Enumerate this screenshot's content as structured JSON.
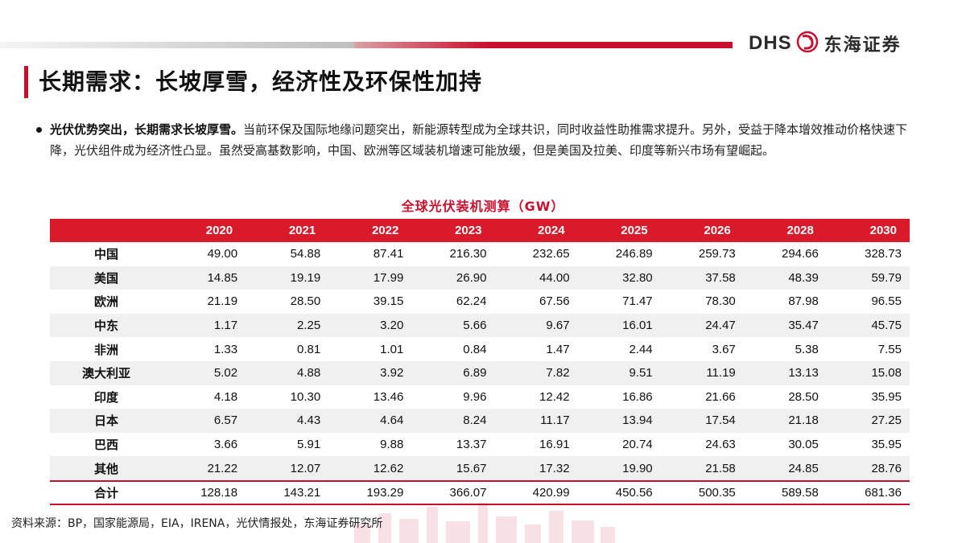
{
  "header": {
    "logo_latin": "DHS",
    "logo_cn": "东海证券"
  },
  "page_title": "长期需求：长坡厚雪，经济性及环保性加持",
  "bullet": {
    "bold": "光伏优势突出，长期需求长坡厚雪。",
    "text": "当前环保及国际地缘问题突出，新能源转型成为全球共识，同时收益性助推需求提升。另外，受益于降本增效推动价格快速下降，光伏组件成为经济性凸显。虽然受高基数影响，中国、欧洲等区域装机增速可能放缓，但是美国及拉美、印度等新兴市场有望崛起。"
  },
  "table": {
    "title": "全球光伏装机测算（GW）",
    "columns": [
      "",
      "2020",
      "2021",
      "2022",
      "2023",
      "2024",
      "2025",
      "2026",
      "2028",
      "2030"
    ],
    "rows": [
      [
        "中国",
        "49.00",
        "54.88",
        "87.41",
        "216.30",
        "232.65",
        "246.89",
        "259.73",
        "294.66",
        "328.73"
      ],
      [
        "美国",
        "14.85",
        "19.19",
        "17.99",
        "26.90",
        "44.00",
        "32.80",
        "37.58",
        "48.39",
        "59.79"
      ],
      [
        "欧洲",
        "21.19",
        "28.50",
        "39.15",
        "62.24",
        "67.56",
        "71.47",
        "78.30",
        "87.98",
        "96.55"
      ],
      [
        "中东",
        "1.17",
        "2.25",
        "3.20",
        "5.66",
        "9.67",
        "16.01",
        "24.47",
        "35.47",
        "45.75"
      ],
      [
        "非洲",
        "1.33",
        "0.81",
        "1.01",
        "0.84",
        "1.47",
        "2.44",
        "3.67",
        "5.38",
        "7.55"
      ],
      [
        "澳大利亚",
        "5.02",
        "4.88",
        "3.92",
        "6.89",
        "7.82",
        "9.51",
        "11.19",
        "13.13",
        "15.08"
      ],
      [
        "印度",
        "4.18",
        "10.30",
        "13.46",
        "9.96",
        "12.42",
        "16.86",
        "21.66",
        "28.50",
        "35.95"
      ],
      [
        "日本",
        "6.57",
        "4.43",
        "4.64",
        "8.24",
        "11.17",
        "13.94",
        "17.54",
        "21.18",
        "27.25"
      ],
      [
        "巴西",
        "3.66",
        "5.91",
        "9.88",
        "13.37",
        "16.91",
        "20.74",
        "24.63",
        "30.05",
        "35.95"
      ],
      [
        "其他",
        "21.22",
        "12.07",
        "12.62",
        "15.67",
        "17.32",
        "19.90",
        "21.58",
        "24.85",
        "28.76"
      ]
    ],
    "total": [
      "合计",
      "128.18",
      "143.21",
      "193.29",
      "366.07",
      "420.99",
      "450.56",
      "500.35",
      "589.58",
      "681.36"
    ]
  },
  "source": "资料来源：BP，国家能源局，EIA，IRENA，光伏情报处，东海证券研究所"
}
